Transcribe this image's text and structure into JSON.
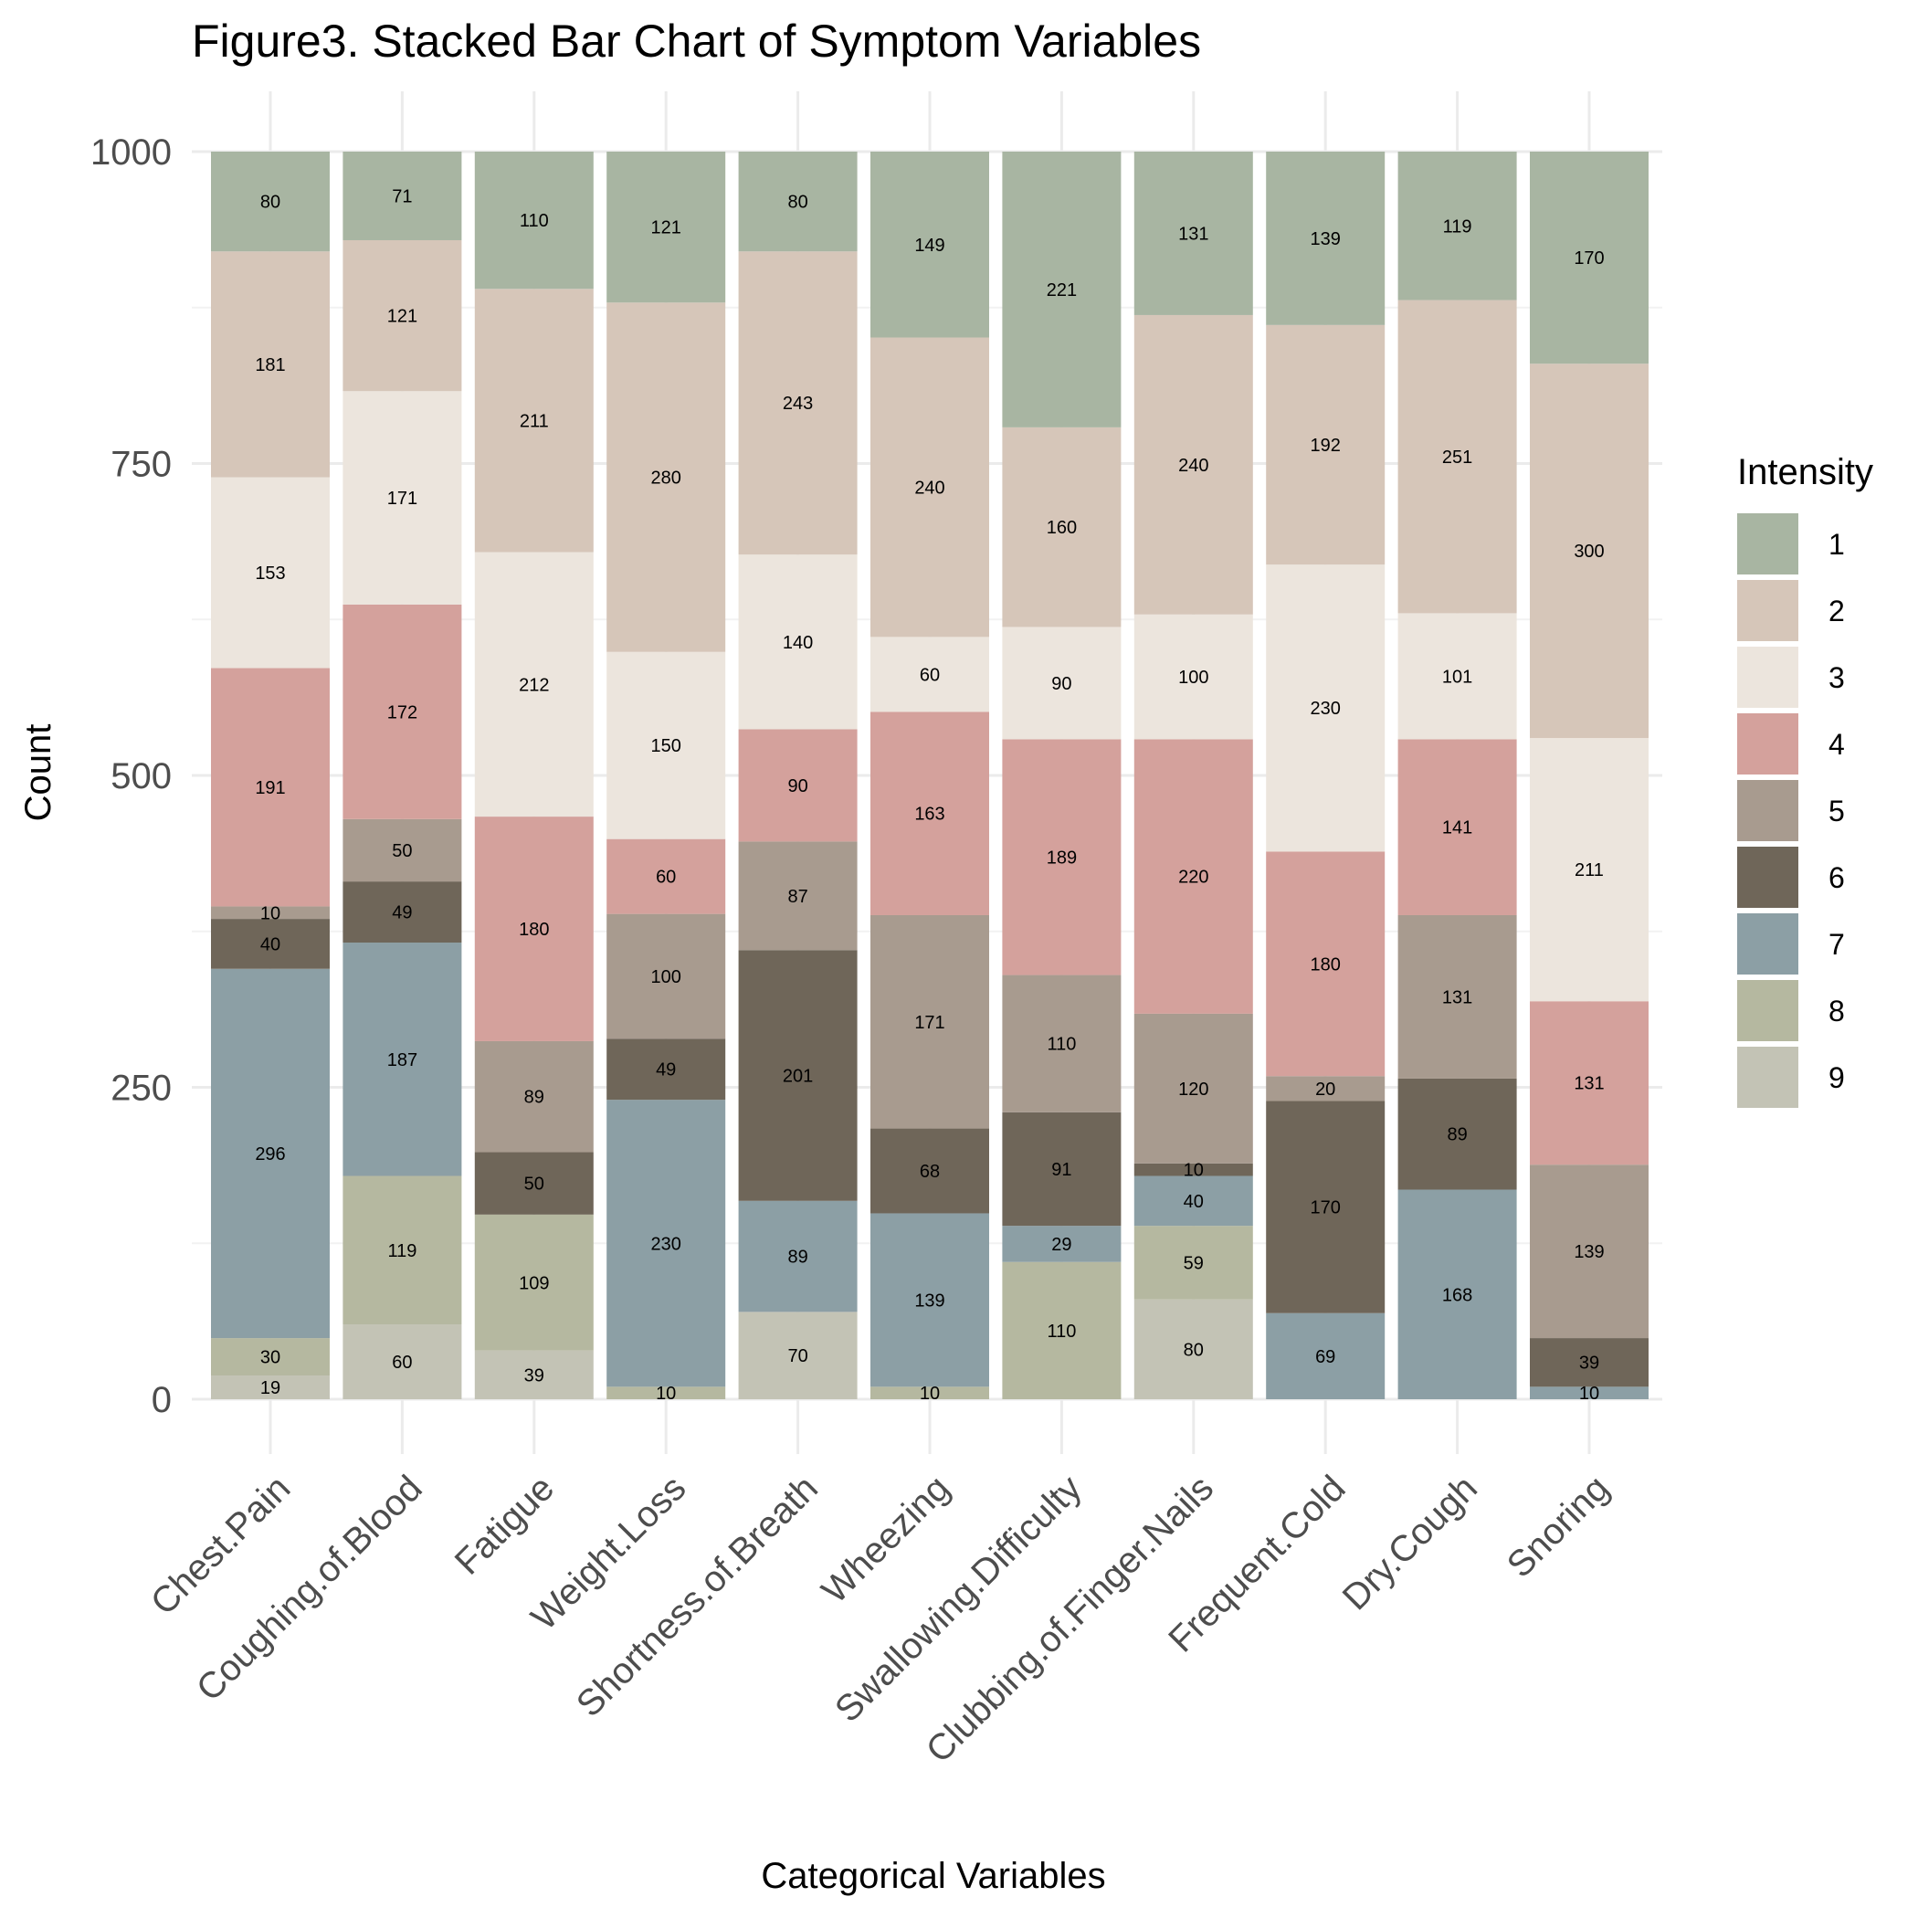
{
  "chart_data": {
    "type": "bar",
    "stacked": true,
    "title": "Figure3. Stacked Bar Chart of Symptom Variables",
    "xlabel": "Categorical Variables",
    "ylabel": "Count",
    "ylim": [
      0,
      1000
    ],
    "yticks": [
      0,
      250,
      500,
      750,
      1000
    ],
    "grid": true,
    "legend_position": "right",
    "legend_title": "Intensity",
    "categories": [
      "Chest.Pain",
      "Coughing.of.Blood",
      "Fatigue",
      "Weight.Loss",
      "Shortness.of.Breath",
      "Wheezing",
      "Swallowing.Difficulty",
      "Clubbing.of.Finger.Nails",
      "Frequent.Cold",
      "Dry.Cough",
      "Snoring"
    ],
    "series": [
      {
        "name": "1",
        "color": "#a8b5a2",
        "values": [
          80,
          71,
          110,
          121,
          80,
          149,
          221,
          131,
          139,
          119,
          170
        ]
      },
      {
        "name": "2",
        "color": "#d6c6b9",
        "values": [
          181,
          121,
          211,
          280,
          243,
          240,
          160,
          240,
          192,
          251,
          300
        ]
      },
      {
        "name": "3",
        "color": "#ece5dd",
        "values": [
          153,
          171,
          212,
          150,
          140,
          60,
          90,
          100,
          230,
          101,
          211
        ]
      },
      {
        "name": "4",
        "color": "#d4a19c",
        "values": [
          191,
          172,
          180,
          60,
          90,
          163,
          189,
          220,
          180,
          141,
          131
        ]
      },
      {
        "name": "5",
        "color": "#a89b8f",
        "values": [
          10,
          50,
          89,
          100,
          87,
          171,
          110,
          120,
          20,
          131,
          139
        ]
      },
      {
        "name": "6",
        "color": "#6f6659",
        "values": [
          40,
          49,
          50,
          49,
          201,
          68,
          91,
          10,
          170,
          89,
          39
        ]
      },
      {
        "name": "7",
        "color": "#8c9fa5",
        "values": [
          296,
          187,
          0,
          230,
          89,
          139,
          29,
          40,
          69,
          168,
          10
        ]
      },
      {
        "name": "8",
        "color": "#b5b8a0",
        "values": [
          30,
          119,
          109,
          10,
          0,
          10,
          110,
          59,
          0,
          0,
          0
        ]
      },
      {
        "name": "9",
        "color": "#c3c3b5",
        "values": [
          19,
          60,
          39,
          0,
          70,
          0,
          0,
          80,
          0,
          0,
          0
        ]
      }
    ]
  }
}
